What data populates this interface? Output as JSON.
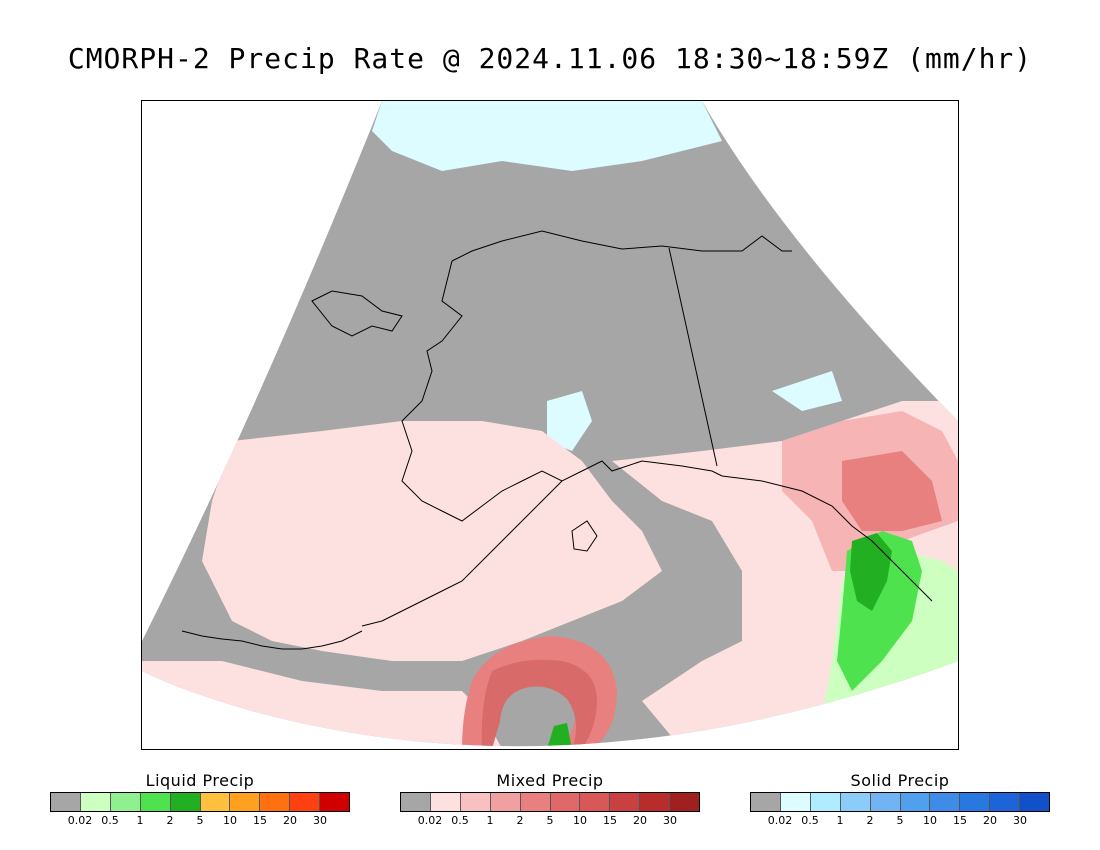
{
  "title": "CMORPH-2 Precip Rate @ 2024.11.06 18:30~18:59Z (mm/hr)",
  "map": {
    "region": "Alaska and North Pacific",
    "colors": {
      "no_precip": "#a6a6a6",
      "mixed_light": "#fde1e1",
      "mixed_mid": "#f6b4b4",
      "mixed_strong": "#e88080",
      "mixed_heavy": "#d96a6a",
      "liquid_light": "#ccffc0",
      "liquid_mid": "#4ee34e",
      "liquid_heavy": "#22b022",
      "solid_light": "#dcfcff",
      "coastline": "#000000"
    }
  },
  "legends": [
    {
      "title": "Liquid Precip",
      "colors": [
        "#a6a6a6",
        "#ccffc0",
        "#8ef08e",
        "#4ee34e",
        "#22b022",
        "#ffc040",
        "#ffa020",
        "#ff7010",
        "#ff4010",
        "#d00000"
      ],
      "ticks": [
        "0.02",
        "0.5",
        "1",
        "2",
        "5",
        "10",
        "15",
        "20",
        "30"
      ]
    },
    {
      "title": "Mixed Precip",
      "colors": [
        "#a6a6a6",
        "#fde1e1",
        "#f8c0c0",
        "#f0a0a0",
        "#e88080",
        "#e06868",
        "#d85858",
        "#c84040",
        "#b82c2c",
        "#a02020"
      ],
      "ticks": [
        "0.02",
        "0.5",
        "1",
        "2",
        "5",
        "10",
        "15",
        "20",
        "30"
      ]
    },
    {
      "title": "Solid Precip",
      "colors": [
        "#a6a6a6",
        "#dcfcff",
        "#b0ecff",
        "#8cccf8",
        "#70b4f4",
        "#50a0ee",
        "#3c8ce8",
        "#2878e0",
        "#1c64d8",
        "#1050c8"
      ],
      "ticks": [
        "0.02",
        "0.5",
        "1",
        "2",
        "5",
        "10",
        "15",
        "20",
        "30"
      ]
    }
  ]
}
